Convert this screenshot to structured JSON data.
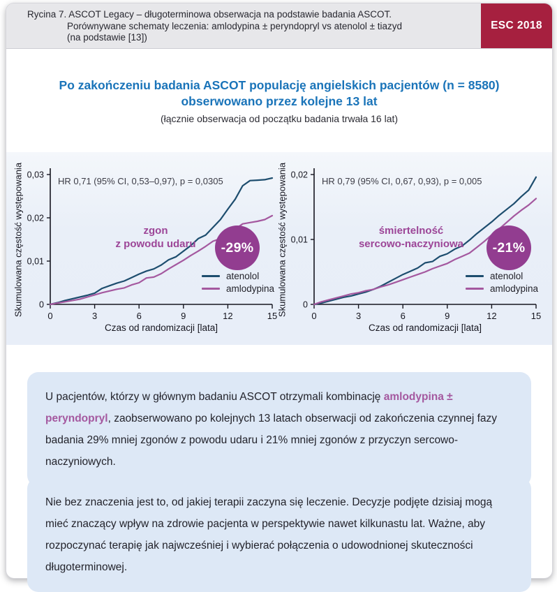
{
  "header": {
    "caption_line1": "Rycina 7. ASCOT Legacy – długoterminowa obserwacja na podstawie badania ASCOT.",
    "caption_line2": "Porównywane schematy leczenia: amlodypina ± peryndopryl vs atenolol ± tiazyd",
    "caption_line3": "(na podstawie [13])",
    "badge_label": "ESC 2018"
  },
  "title": {
    "main": "Po zakończeniu badania ASCOT populację angielskich pacjentów (n = 8580)\nobserwowano przez kolejne 13 lat",
    "subtitle": "(łącznie obserwacja od początku badania trwała 16 lat)"
  },
  "colors": {
    "badge_red": "#a6203f",
    "title_blue": "#1a74b9",
    "atenolol_navy": "#1d4d6e",
    "amlodypina_purple": "#a4589f",
    "reduction_circle_purple": "#923d90",
    "condition_label_purple": "#9c4597",
    "info_box_blue": "#dde8f6",
    "chart_band_blue": "#e8eef8",
    "axis_color": "#15151f"
  },
  "chart_data": [
    {
      "type": "line",
      "annotation": "HR 0,71 (95% CI, 0,53–0,97), p = 0,0305",
      "condition_label": "zgon\nz powodu udaru",
      "reduction_badge": "-29%",
      "xlabel": "Czas od randomizacji [lata]",
      "ylabel": "Skumulowana częstość występowania",
      "xlim": [
        0,
        15
      ],
      "ylim": [
        0,
        0.03
      ],
      "xticks": [
        0,
        3,
        6,
        9,
        12,
        15
      ],
      "ytick_values": [
        0,
        0.01,
        0.02,
        0.03
      ],
      "ytick_labels": [
        "0",
        "0,01",
        "0,02",
        "0,03"
      ],
      "grid": false,
      "legend_position": "bottom-right",
      "x": [
        0,
        0.5,
        1,
        1.5,
        2,
        2.5,
        3,
        3.5,
        4,
        4.5,
        5,
        5.5,
        6,
        6.5,
        7,
        7.5,
        8,
        8.5,
        9,
        9.5,
        10,
        10.5,
        11,
        11.5,
        12,
        12.5,
        13,
        13.5,
        14,
        14.5,
        15
      ],
      "series": [
        {
          "name": "atenolol",
          "color": "#1d4d6e",
          "values": [
            0,
            0.0004,
            0.0009,
            0.0013,
            0.0017,
            0.0021,
            0.0026,
            0.0037,
            0.0043,
            0.0049,
            0.0054,
            0.0062,
            0.007,
            0.0077,
            0.0082,
            0.0091,
            0.0103,
            0.011,
            0.0123,
            0.0136,
            0.0152,
            0.016,
            0.0178,
            0.0196,
            0.022,
            0.0243,
            0.0274,
            0.0286,
            0.0287,
            0.0288,
            0.0292
          ]
        },
        {
          "name": "amlodypina",
          "color": "#a4589f",
          "values": [
            0,
            0.0003,
            0.0006,
            0.0009,
            0.0012,
            0.0017,
            0.0022,
            0.0027,
            0.0031,
            0.0035,
            0.0038,
            0.0045,
            0.005,
            0.0061,
            0.0063,
            0.0071,
            0.0082,
            0.0092,
            0.0102,
            0.0113,
            0.0123,
            0.0134,
            0.0146,
            0.0152,
            0.0168,
            0.0174,
            0.0186,
            0.0189,
            0.0192,
            0.0196,
            0.0205
          ]
        }
      ]
    },
    {
      "type": "line",
      "annotation": "HR 0,79 (95% CI, 0,67, 0,93), p = 0,005",
      "condition_label": "śmiertelność\nsercowo-naczyniowa",
      "reduction_badge": "-21%",
      "xlabel": "Czas od randomizacji [lata]",
      "ylabel": "Skumulowana częstość występowania",
      "xlim": [
        0,
        15
      ],
      "ylim": [
        0,
        0.02
      ],
      "xticks": [
        0,
        3,
        6,
        9,
        12,
        15
      ],
      "ytick_values": [
        0,
        0.01,
        0.02
      ],
      "ytick_labels": [
        "0",
        "0,01",
        "0,02"
      ],
      "grid": false,
      "legend_position": "bottom-right",
      "x": [
        0,
        0.5,
        1,
        1.5,
        2,
        2.5,
        3,
        3.5,
        4,
        4.5,
        5,
        5.5,
        6,
        6.5,
        7,
        7.5,
        8,
        8.5,
        9,
        9.5,
        10,
        10.5,
        11,
        11.5,
        12,
        12.5,
        13,
        13.5,
        14,
        14.5,
        15
      ],
      "series": [
        {
          "name": "atenolol",
          "color": "#1d4d6e",
          "values": [
            0,
            0.0002,
            0.0005,
            0.0008,
            0.0011,
            0.0013,
            0.0016,
            0.0019,
            0.0023,
            0.0028,
            0.0034,
            0.004,
            0.0046,
            0.0051,
            0.0056,
            0.0064,
            0.0066,
            0.0074,
            0.0078,
            0.0085,
            0.009,
            0.0099,
            0.0109,
            0.0118,
            0.0127,
            0.0137,
            0.0146,
            0.0155,
            0.0166,
            0.0176,
            0.0196
          ]
        },
        {
          "name": "amlodypina",
          "color": "#a4589f",
          "values": [
            0,
            0.0004,
            0.0007,
            0.001,
            0.0013,
            0.0016,
            0.0018,
            0.0021,
            0.0023,
            0.0027,
            0.003,
            0.0034,
            0.0038,
            0.0042,
            0.0046,
            0.005,
            0.0055,
            0.0059,
            0.0063,
            0.0069,
            0.0074,
            0.0079,
            0.0088,
            0.0097,
            0.0107,
            0.0116,
            0.0126,
            0.0136,
            0.0145,
            0.0153,
            0.0163
          ]
        }
      ]
    }
  ],
  "boxes": [
    {
      "text_before": "U pacjentów, którzy w głównym badaniu ASCOT otrzymali kombinację ",
      "highlight": "amlodypina ± peryndopryl",
      "text_after": ", zaobserwowano po kolejnych 13 latach obserwacji od zakończenia czynnej fazy badania 29% mniej zgonów z powodu udaru i 21% mniej zgonów z przyczyn sercowo-naczyniowych."
    },
    {
      "text": "Nie bez znaczenia jest to, od jakiej terapii zaczyna się leczenie. Decyzje podjęte dzisiaj mogą mieć znaczący wpływ na zdrowie pacjenta w perspektywie nawet kilkunastu lat. Ważne, aby rozpoczynać terapię jak najwcześniej i wybierać połączenia o udowodnionej skuteczności długoterminowej."
    }
  ]
}
